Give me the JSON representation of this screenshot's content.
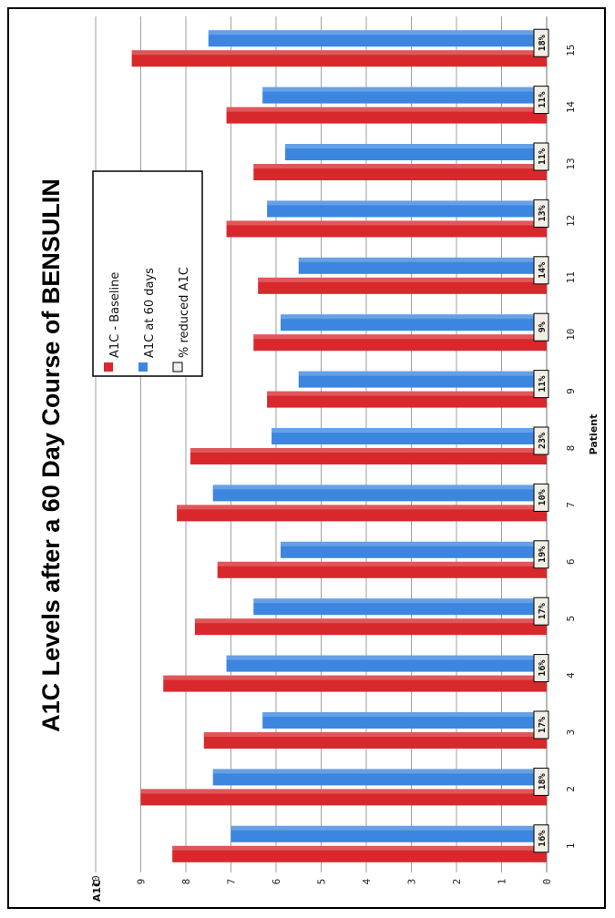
{
  "chart_data": {
    "type": "bar",
    "orientation": "horizontal",
    "title": "A1C Levels after a 60 Day Course of BENSULIN",
    "xlabel": "Patient",
    "ylabel": "A1C",
    "ylim": [
      0,
      10
    ],
    "y_ticks": [
      "0",
      "1",
      "2",
      "3",
      "4",
      "5",
      "6",
      "7",
      "8",
      "9",
      "10"
    ],
    "categories": [
      "1",
      "2",
      "3",
      "4",
      "5",
      "6",
      "7",
      "8",
      "9",
      "10",
      "11",
      "12",
      "13",
      "14",
      "15"
    ],
    "series": [
      {
        "name": "A1C - Baseline",
        "color": "#d8282c",
        "values": [
          8.3,
          9.0,
          7.6,
          8.5,
          7.8,
          7.3,
          8.2,
          7.9,
          6.2,
          6.5,
          6.4,
          7.1,
          6.5,
          7.1,
          9.2
        ]
      },
      {
        "name": "A1C at 60 days",
        "color": "#3c86e0",
        "values": [
          7.0,
          7.4,
          6.3,
          7.1,
          6.5,
          5.9,
          7.4,
          6.1,
          5.5,
          5.9,
          5.5,
          6.2,
          5.8,
          6.3,
          7.5
        ]
      },
      {
        "name": "% reduced A1C",
        "color": "#f2f0e6",
        "labels": [
          "16%",
          "18%",
          "17%",
          "16%",
          "17%",
          "19%",
          "10%",
          "23%",
          "11%",
          "9%",
          "14%",
          "13%",
          "11%",
          "11%",
          "18%"
        ]
      }
    ],
    "grid": true,
    "legend_position": "top-right"
  },
  "colors": {
    "baseline": "#d8282c",
    "sixty_days": "#3c86e0",
    "percent_box": "#f2f0e6",
    "grid": "#888888"
  }
}
